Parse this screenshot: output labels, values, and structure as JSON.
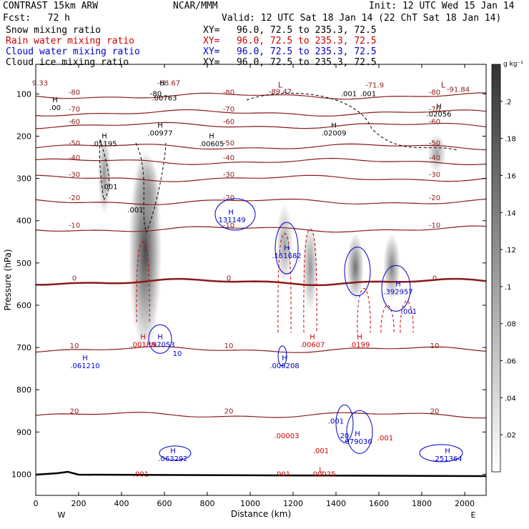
{
  "header": {
    "model": "CONTRAST 15km ARW",
    "center": "NCAR/MMM",
    "init": "Init: 12 UTC Wed 15 Jan 14",
    "fcst": "Fcst:   72 h",
    "valid": "Valid: 12 UTC Sat 18 Jan 14 (22 ChT Sat 18 Jan 14)",
    "fields": [
      {
        "label": "Snow mixing ratio",
        "xy": "XY=   96.0, 72.5 to 235.3, 72.5",
        "color": "#000000"
      },
      {
        "label": "Rain water mixing ratio",
        "xy": "XY=   96.0, 72.5 to 235.3, 72.5",
        "color": "#cc0000"
      },
      {
        "label": "Cloud water mixing ratio",
        "xy": "XY=   96.0, 72.5 to 235.3, 72.5",
        "color": "#0000cc"
      },
      {
        "label": "Cloud ice mixing ratio",
        "xy": "XY=   96.0, 72.5 to 235.3, 72.5",
        "color": "#000000"
      }
    ]
  },
  "chart_data": {
    "type": "heatmap",
    "xlabel": "Distance (km)",
    "ylabel": "Pressure (hPa)",
    "xlim": [
      0,
      2100
    ],
    "ylim": [
      1050,
      30
    ],
    "x_ticks": [
      0,
      200,
      400,
      600,
      800,
      1000,
      1200,
      1400,
      1600,
      1800,
      2000
    ],
    "y_ticks": [
      100,
      200,
      300,
      400,
      500,
      600,
      700,
      800,
      900,
      1000
    ],
    "left_label": "W",
    "right_label": "E",
    "colorbar": {
      "unit": "g kg⁻¹",
      "ticks": [
        ".2",
        ".18",
        ".16",
        ".14",
        ".12",
        ".1",
        ".08",
        ".06",
        ".04",
        ".02"
      ],
      "tick_values": [
        0.2,
        0.18,
        0.16,
        0.14,
        0.12,
        0.1,
        0.08,
        0.06,
        0.04,
        0.02
      ],
      "max": 0.22
    },
    "snow_cells": [
      {
        "x": 320,
        "p": 290,
        "sx": 14,
        "sp": 60,
        "q": 0.12
      },
      {
        "x": 510,
        "p": 470,
        "sx": 35,
        "sp": 150,
        "q": 0.2
      },
      {
        "x": 520,
        "p": 340,
        "sx": 28,
        "sp": 60,
        "q": 0.12
      },
      {
        "x": 1160,
        "p": 455,
        "sx": 18,
        "sp": 60,
        "q": 0.1
      },
      {
        "x": 1280,
        "p": 510,
        "sx": 16,
        "sp": 65,
        "q": 0.12
      },
      {
        "x": 1490,
        "p": 510,
        "sx": 18,
        "sp": 50,
        "q": 0.16
      },
      {
        "x": 1660,
        "p": 510,
        "sx": 18,
        "sp": 50,
        "q": 0.14
      },
      {
        "x": 1870,
        "p": 240,
        "sx": 20,
        "sp": 28,
        "q": 0.1
      }
    ],
    "temperature_contours": [
      {
        "level": -80,
        "p": 105,
        "label": "-80"
      },
      {
        "level": -70,
        "p": 145,
        "label": "-70"
      },
      {
        "level": -60,
        "p": 175,
        "label": "-60"
      },
      {
        "level": -50,
        "p": 225,
        "label": "-50"
      },
      {
        "level": -40,
        "p": 260,
        "label": "-40"
      },
      {
        "level": -30,
        "p": 300,
        "label": "-30"
      },
      {
        "level": -20,
        "p": 355,
        "label": "-20"
      },
      {
        "level": -10,
        "p": 420,
        "label": "-10"
      },
      {
        "level": 0,
        "p": 545,
        "label": "0"
      },
      {
        "level": 10,
        "p": 705,
        "label": "10"
      },
      {
        "level": 20,
        "p": 860,
        "label": "20"
      }
    ],
    "temperature_labels": [
      {
        "x": 1580,
        "p": 85,
        "text": "-71.9"
      },
      {
        "x": 1140,
        "p": 100,
        "text": "-89.47"
      },
      {
        "x": 1970,
        "p": 95,
        "text": "-91.84"
      },
      {
        "x": 620,
        "p": 80,
        "text": "-68.67"
      },
      {
        "x": 20,
        "p": 80,
        "text": "9.33"
      }
    ],
    "extrema": [
      {
        "type": "H",
        "x": 90,
        "p": 120,
        "label": ".00",
        "color": "#000000"
      },
      {
        "type": "H",
        "x": 590,
        "p": 80,
        "label": "",
        "color": "#000000"
      },
      {
        "type": "H",
        "x": 1880,
        "p": 135,
        "label": ".02056",
        "color": "#000000"
      },
      {
        "type": "H",
        "x": 1390,
        "p": 180,
        "label": ".02009",
        "color": "#000000"
      },
      {
        "type": "H",
        "x": 320,
        "p": 205,
        "label": ".01195",
        "color": "#000000"
      },
      {
        "type": "H",
        "x": 580,
        "p": 180,
        "label": ".00977",
        "color": "#000000"
      },
      {
        "type": "H",
        "x": 820,
        "p": 205,
        "label": ".00605",
        "color": "#000000"
      },
      {
        "type": "H",
        "x": 910,
        "p": 385,
        "label": ".131149",
        "color": "#0000cc"
      },
      {
        "type": "H",
        "x": 1170,
        "p": 470,
        "label": ".151682",
        "color": "#0000cc"
      },
      {
        "type": "H",
        "x": 1690,
        "p": 555,
        "label": ".392957",
        "color": "#0000cc"
      },
      {
        "type": "H",
        "x": 580,
        "p": 680,
        "label": ".197053",
        "color": "#0000cc"
      },
      {
        "type": "H",
        "x": 500,
        "p": 680,
        "label": ".00188",
        "color": "#cc0000"
      },
      {
        "type": "H",
        "x": 1290,
        "p": 680,
        "label": ".00607",
        "color": "#cc0000"
      },
      {
        "type": "H",
        "x": 1510,
        "p": 680,
        "label": ".0199",
        "color": "#cc0000"
      },
      {
        "type": "H",
        "x": 230,
        "p": 730,
        "label": ".061210",
        "color": "#0000cc"
      },
      {
        "type": "H",
        "x": 1160,
        "p": 730,
        "label": ".006208",
        "color": "#0000cc"
      },
      {
        "type": "H",
        "x": 1500,
        "p": 910,
        "label": ".079036",
        "color": "#0000cc"
      },
      {
        "type": "H",
        "x": 640,
        "p": 950,
        "label": ".063292",
        "color": "#0000cc"
      },
      {
        "type": "H",
        "x": 1920,
        "p": 950,
        "label": ".251364",
        "color": "#0000cc"
      }
    ],
    "small_labels": [
      {
        "x": 600,
        "p": 115,
        "text": ".00763",
        "color": "#000000"
      },
      {
        "x": 560,
        "p": 105,
        "text": "-80",
        "color": "#000000"
      },
      {
        "x": 1460,
        "p": 105,
        "text": ".001",
        "color": "#000000"
      },
      {
        "x": 1550,
        "p": 105,
        "text": ".001",
        "color": "#000000"
      },
      {
        "x": 345,
        "p": 325,
        "text": ".001",
        "color": "#000000"
      },
      {
        "x": 465,
        "p": 380,
        "text": ".001",
        "color": "#000000"
      },
      {
        "x": 1740,
        "p": 620,
        "text": ".001",
        "color": "#0000cc"
      },
      {
        "x": 1400,
        "p": 880,
        "text": ".001",
        "color": "#0000cc"
      },
      {
        "x": 1440,
        "p": 915,
        "text": "20",
        "color": "#0000cc"
      },
      {
        "x": 660,
        "p": 720,
        "text": "10",
        "color": "#0000cc"
      },
      {
        "x": 1170,
        "p": 915,
        "text": ".00003",
        "color": "#cc0000"
      },
      {
        "x": 1330,
        "p": 950,
        "text": ".001",
        "color": "#cc0000"
      },
      {
        "x": 1630,
        "p": 920,
        "text": ".001",
        "color": "#cc0000"
      },
      {
        "x": 490,
        "p": 1005,
        "text": ".001",
        "color": "#cc0000"
      },
      {
        "x": 1150,
        "p": 1005,
        "text": ".001",
        "color": "#cc0000"
      },
      {
        "x": 1340,
        "p": 1005,
        "text": ".00025",
        "color": "#cc0000"
      },
      {
        "x": 1330,
        "p": 995,
        "text": "L",
        "color": "#cc0000"
      }
    ],
    "low_markers": [
      {
        "x": 1140,
        "p": 85,
        "text": "L"
      },
      {
        "x": 1900,
        "p": 85,
        "text": "L"
      }
    ]
  }
}
